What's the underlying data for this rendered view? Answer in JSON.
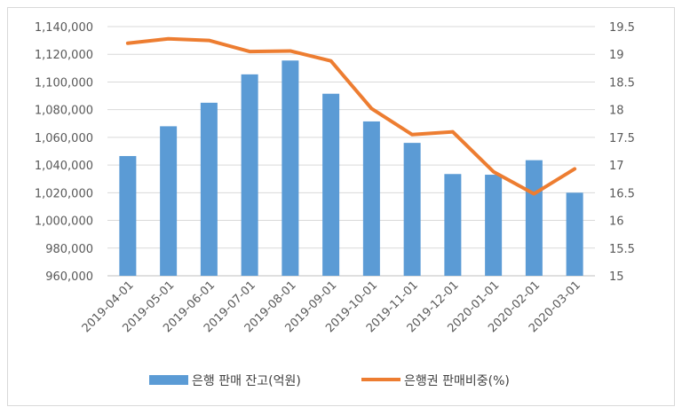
{
  "chart_data": {
    "type": "bar+line",
    "categories": [
      "2019-04-01",
      "2019-05-01",
      "2019-06-01",
      "2019-07-01",
      "2019-08-01",
      "2019-09-01",
      "2019-10-01",
      "2019-11-01",
      "2019-12-01",
      "2020-01-01",
      "2020-02-01",
      "2020-03-01"
    ],
    "series": [
      {
        "name": "은행 판매 잔고(억원)",
        "type": "bar",
        "axis": "left",
        "color": "#5b9bd5",
        "values": [
          1046500,
          1068000,
          1085000,
          1105500,
          1115500,
          1091500,
          1071500,
          1056000,
          1033500,
          1033000,
          1043500,
          1020000
        ]
      },
      {
        "name": "은행권 판매비중(%)",
        "type": "line",
        "axis": "right",
        "color": "#ed7d31",
        "values": [
          19.2,
          19.28,
          19.25,
          19.05,
          19.06,
          18.88,
          18.02,
          17.55,
          17.6,
          16.88,
          16.48,
          16.93
        ]
      }
    ],
    "y_left": {
      "ylim": [
        960000,
        1140000
      ],
      "ticks": [
        "960,000",
        "980,000",
        "1,000,000",
        "1,020,000",
        "1,040,000",
        "1,060,000",
        "1,080,000",
        "1,100,000",
        "1,120,000",
        "1,140,000"
      ]
    },
    "y_right": {
      "ylim": [
        15,
        19.5
      ],
      "ticks": [
        "15",
        "15.5",
        "16",
        "16.5",
        "17",
        "17.5",
        "18",
        "18.5",
        "19",
        "19.5"
      ]
    },
    "grid": true,
    "legend": "bottom"
  }
}
